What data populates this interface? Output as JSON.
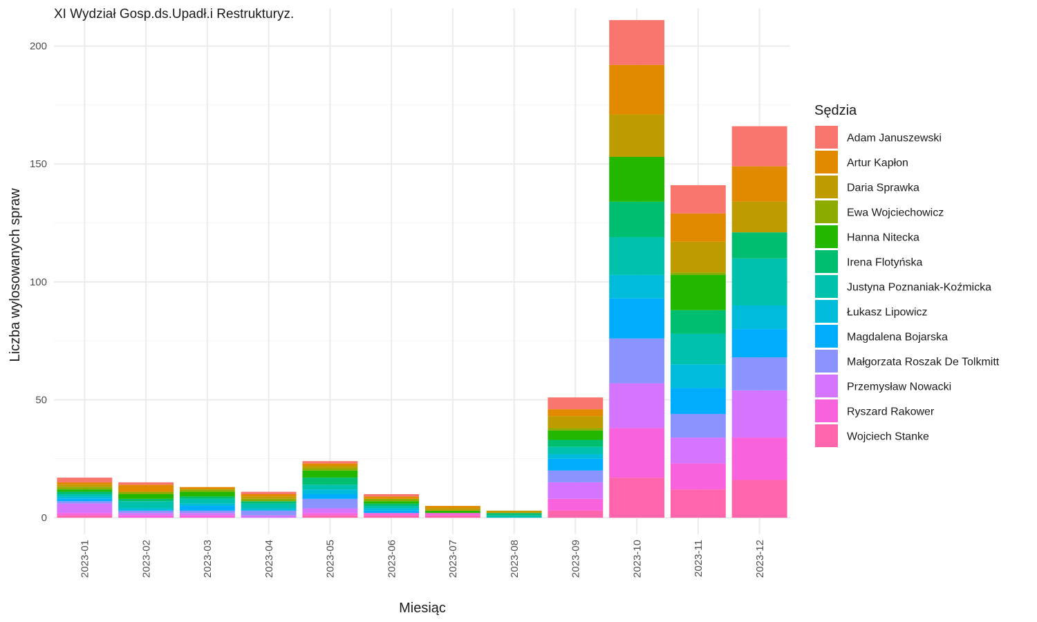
{
  "chart_data": {
    "type": "bar",
    "stacked": true,
    "title": "XI Wydział Gosp.ds.Upadł.i Restrukturyz.",
    "xlabel": "Miesiąc",
    "ylabel": "Liczba wylosowanych spraw",
    "ylim": [
      -7,
      216
    ],
    "yticks": [
      0,
      50,
      100,
      150,
      200
    ],
    "grid": true,
    "legend_title": "Sędzia",
    "legend_position": "right",
    "categories": [
      "2023-01",
      "2023-02",
      "2023-03",
      "2023-04",
      "2023-05",
      "2023-06",
      "2023-07",
      "2023-08",
      "2023-09",
      "2023-10",
      "2023-11",
      "2023-12"
    ],
    "series": [
      {
        "name": "Adam Januszewski",
        "color": "#F8766D",
        "values": [
          2,
          1,
          0,
          1,
          1,
          1,
          0,
          0,
          5,
          19,
          12,
          17
        ]
      },
      {
        "name": "Artur Kapłon",
        "color": "#E18A00",
        "values": [
          1,
          3,
          1,
          1,
          1,
          1,
          1,
          0,
          3,
          21,
          12,
          15
        ]
      },
      {
        "name": "Daria Sprawka",
        "color": "#BE9C00",
        "values": [
          1,
          0,
          0,
          1,
          1,
          0,
          1,
          1,
          5,
          18,
          13,
          13
        ]
      },
      {
        "name": "Ewa Wojciechowicz",
        "color": "#8CAB00",
        "values": [
          1,
          1,
          1,
          1,
          1,
          1,
          0,
          0,
          1,
          0,
          1,
          0
        ]
      },
      {
        "name": "Hanna Nitecka",
        "color": "#24B700",
        "values": [
          1,
          2,
          2,
          0,
          3,
          1,
          1,
          0,
          4,
          19,
          15,
          0
        ]
      },
      {
        "name": "Irena Flotyńska",
        "color": "#00BE70",
        "values": [
          1,
          1,
          1,
          1,
          3,
          1,
          0,
          1,
          3,
          15,
          10,
          11
        ]
      },
      {
        "name": "Justyna Poznaniak-Koźmicka",
        "color": "#00C1AB",
        "values": [
          1,
          3,
          2,
          2,
          2,
          1,
          0,
          1,
          3,
          16,
          13,
          20
        ]
      },
      {
        "name": "Łukasz Lipowicz",
        "color": "#00BBDA",
        "values": [
          1,
          1,
          1,
          1,
          2,
          1,
          0,
          0,
          2,
          10,
          10,
          10
        ]
      },
      {
        "name": "Magdalena Bojarska",
        "color": "#00ACFC",
        "values": [
          1,
          0,
          2,
          0,
          2,
          1,
          0,
          0,
          5,
          17,
          11,
          12
        ]
      },
      {
        "name": "Małgorzata Roszak De Tolkmitt",
        "color": "#8B93FF",
        "values": [
          1,
          1,
          1,
          2,
          4,
          0,
          0,
          0,
          5,
          19,
          10,
          14
        ]
      },
      {
        "name": "Przemysław Nowacki",
        "color": "#D575FE",
        "values": [
          4,
          1,
          1,
          1,
          2,
          0,
          0,
          0,
          7,
          19,
          11,
          20
        ]
      },
      {
        "name": "Ryszard Rakower",
        "color": "#F962DD",
        "values": [
          1,
          1,
          1,
          0,
          1,
          1,
          1,
          0,
          5,
          21,
          11,
          18
        ]
      },
      {
        "name": "Wojciech Stanke",
        "color": "#FF65AC",
        "values": [
          1,
          0,
          0,
          0,
          1,
          1,
          1,
          0,
          3,
          17,
          12,
          16
        ]
      }
    ]
  }
}
